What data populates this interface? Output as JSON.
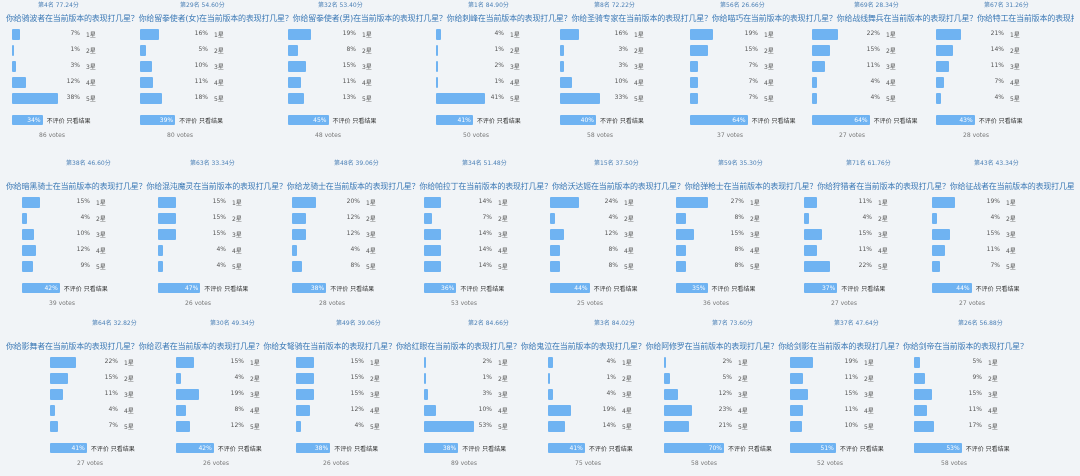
{
  "rows": [
    {
      "top_ranks": [
        "第4名 77.24分",
        "第29名 54.60分",
        "第32名 53.40分",
        "第1名 84.90分",
        "第8名 72.22分",
        "第56名 26.66分",
        "第69名 28.34分",
        "第67名 31.26分"
      ],
      "title": "你给骑波者在当前版本的表现打几星？你给留拳使者(女)在当前版本的表现打几星？你给留拳使者(男)在当前版本的表现打几星？你给刺峰在当前版本的表现打几星？你给圣骑专家在当前版本的表现打几星？你给喵巧在当前版本的表现打几星？你给战线舞兵在当前版本的表现打几星？你给特工在当前版本的表现打几星？",
      "polls": [
        {
          "opts": [
            [
              "7%",
              "1星"
            ],
            [
              "1%",
              "2星"
            ],
            [
              "3%",
              "3星"
            ],
            [
              "12%",
              "4星"
            ],
            [
              "38%",
              "5星"
            ]
          ],
          "result": "34%",
          "votes": "86 votes"
        },
        {
          "opts": [
            [
              "16%",
              "1星"
            ],
            [
              "5%",
              "2星"
            ],
            [
              "10%",
              "3星"
            ],
            [
              "11%",
              "4星"
            ],
            [
              "18%",
              "5星"
            ]
          ],
          "result": "39%",
          "votes": "80 votes"
        },
        {
          "opts": [
            [
              "19%",
              "1星"
            ],
            [
              "8%",
              "2星"
            ],
            [
              "15%",
              "3星"
            ],
            [
              "11%",
              "4星"
            ],
            [
              "13%",
              "5星"
            ]
          ],
          "result": "45%",
          "votes": "48 votes"
        },
        {
          "opts": [
            [
              "4%",
              "1星"
            ],
            [
              "1%",
              "2星"
            ],
            [
              "2%",
              "3星"
            ],
            [
              "1%",
              "4星"
            ],
            [
              "41%",
              "5星"
            ]
          ],
          "result": "41%",
          "votes": "50 votes"
        },
        {
          "opts": [
            [
              "16%",
              "1星"
            ],
            [
              "3%",
              "2星"
            ],
            [
              "3%",
              "3星"
            ],
            [
              "10%",
              "4星"
            ],
            [
              "33%",
              "5星"
            ]
          ],
          "result": "40%",
          "votes": "58 votes"
        },
        {
          "opts": [
            [
              "19%",
              "1星"
            ],
            [
              "15%",
              "2星"
            ],
            [
              "7%",
              "3星"
            ],
            [
              "7%",
              "4星"
            ],
            [
              "7%",
              "5星"
            ]
          ],
          "result": "64%",
          "votes": "37 votes"
        },
        {
          "opts": [
            [
              "22%",
              "1星"
            ],
            [
              "15%",
              "2星"
            ],
            [
              "11%",
              "3星"
            ],
            [
              "4%",
              "4星"
            ],
            [
              "4%",
              "5星"
            ]
          ],
          "result": "64%",
          "votes": "27 votes"
        },
        {
          "opts": [
            [
              "21%",
              "1星"
            ],
            [
              "14%",
              "2星"
            ],
            [
              "11%",
              "3星"
            ],
            [
              "7%",
              "4星"
            ],
            [
              "4%",
              "5星"
            ]
          ],
          "result": "43%",
          "votes": "28 votes"
        }
      ]
    },
    {
      "top_ranks": [
        "第38名 46.60分",
        "第63名 33.34分",
        "第48名 39.06分",
        "第34名 51.48分",
        "第15名 37.50分",
        "第59名 35.30分",
        "第71名 61.76分",
        "第43名 43.34分"
      ],
      "title": "你给暗黑骑士在当前版本的表现打几星？你给混沌魔灵在当前版本的表现打几星？你给龙骑士在当前版本的表现打几星？你给帕拉丁在当前版本的表现打几星？你给沃达姬在当前版本的表现打几星？你给弹枪士在当前版本的表现打几星？你给狩猎者在当前版本的表现打几星？你给征战者在当前版本的表现打几星？",
      "polls": [
        {
          "opts": [
            [
              "15%",
              "1星"
            ],
            [
              "4%",
              "2星"
            ],
            [
              "10%",
              "3星"
            ],
            [
              "12%",
              "4星"
            ],
            [
              "9%",
              "5星"
            ]
          ],
          "result": "42%",
          "votes": "39 votes"
        },
        {
          "opts": [
            [
              "15%",
              "1星"
            ],
            [
              "15%",
              "2星"
            ],
            [
              "15%",
              "3星"
            ],
            [
              "4%",
              "4星"
            ],
            [
              "4%",
              "5星"
            ]
          ],
          "result": "47%",
          "votes": "26 votes"
        },
        {
          "opts": [
            [
              "20%",
              "1星"
            ],
            [
              "12%",
              "2星"
            ],
            [
              "12%",
              "3星"
            ],
            [
              "4%",
              "4星"
            ],
            [
              "8%",
              "5星"
            ]
          ],
          "result": "38%",
          "votes": "28 votes"
        },
        {
          "opts": [
            [
              "14%",
              "1星"
            ],
            [
              "7%",
              "2星"
            ],
            [
              "14%",
              "3星"
            ],
            [
              "14%",
              "4星"
            ],
            [
              "14%",
              "5星"
            ]
          ],
          "result": "36%",
          "votes": "53 votes"
        },
        {
          "opts": [
            [
              "24%",
              "1星"
            ],
            [
              "4%",
              "2星"
            ],
            [
              "12%",
              "3星"
            ],
            [
              "8%",
              "4星"
            ],
            [
              "8%",
              "5星"
            ]
          ],
          "result": "44%",
          "votes": "25 votes"
        },
        {
          "opts": [
            [
              "27%",
              "1星"
            ],
            [
              "8%",
              "2星"
            ],
            [
              "15%",
              "3星"
            ],
            [
              "8%",
              "4星"
            ],
            [
              "8%",
              "5星"
            ]
          ],
          "result": "35%",
          "votes": "36 votes"
        },
        {
          "opts": [
            [
              "11%",
              "1星"
            ],
            [
              "4%",
              "2星"
            ],
            [
              "15%",
              "3星"
            ],
            [
              "11%",
              "4星"
            ],
            [
              "22%",
              "5星"
            ]
          ],
          "result": "37%",
          "votes": "27 votes"
        },
        {
          "opts": [
            [
              "19%",
              "1星"
            ],
            [
              "4%",
              "2星"
            ],
            [
              "15%",
              "3星"
            ],
            [
              "11%",
              "4星"
            ],
            [
              "7%",
              "5星"
            ]
          ],
          "result": "44%",
          "votes": "27 votes"
        }
      ]
    },
    {
      "top_ranks": [
        "第64名 32.82分",
        "第30名 49.34分",
        "第49名 39.06分",
        "第2名 84.66分",
        "第3名 84.02分",
        "第7名 73.60分",
        "第37名 47.64分",
        "第26名 56.88分"
      ],
      "title": "你给影舞者在当前版本的表现打几星？你给忍者在当前版本的表现打几星？你给女弩骑在当前版本的表现打几星？你给红眼在当前版本的表现打几星？你给鬼泣在当前版本的表现打几星？你给阿修罗在当前版本的表现打几星？你给剑影在当前版本的表现打几星？你给剑帝在当前版本的表现打几星？",
      "polls": [
        {
          "opts": [
            [
              "22%",
              "1星"
            ],
            [
              "15%",
              "2星"
            ],
            [
              "11%",
              "3星"
            ],
            [
              "4%",
              "4星"
            ],
            [
              "7%",
              "5星"
            ]
          ],
          "result": "41%",
          "votes": "27 votes"
        },
        {
          "opts": [
            [
              "15%",
              "1星"
            ],
            [
              "4%",
              "2星"
            ],
            [
              "19%",
              "3星"
            ],
            [
              "8%",
              "4星"
            ],
            [
              "12%",
              "5星"
            ]
          ],
          "result": "42%",
          "votes": "26 votes"
        },
        {
          "opts": [
            [
              "15%",
              "1星"
            ],
            [
              "15%",
              "2星"
            ],
            [
              "15%",
              "3星"
            ],
            [
              "12%",
              "4星"
            ],
            [
              "4%",
              "5星"
            ]
          ],
          "result": "38%",
          "votes": "26 votes"
        },
        {
          "opts": [
            [
              "2%",
              "1星"
            ],
            [
              "1%",
              "2星"
            ],
            [
              "3%",
              "3星"
            ],
            [
              "10%",
              "4星"
            ],
            [
              "53%",
              "5星"
            ]
          ],
          "result": "38%",
          "votes": "89 votes"
        },
        {
          "opts": [
            [
              "4%",
              "1星"
            ],
            [
              "1%",
              "2星"
            ],
            [
              "4%",
              "3星"
            ],
            [
              "19%",
              "4星"
            ],
            [
              "14%",
              "5星"
            ]
          ],
          "result": "41%",
          "votes": "75 votes"
        },
        {
          "opts": [
            [
              "2%",
              "1星"
            ],
            [
              "5%",
              "2星"
            ],
            [
              "12%",
              "3星"
            ],
            [
              "23%",
              "4星"
            ],
            [
              "21%",
              "5星"
            ]
          ],
          "result": "70%",
          "votes": "58 votes"
        },
        {
          "opts": [
            [
              "19%",
              "1星"
            ],
            [
              "11%",
              "2星"
            ],
            [
              "15%",
              "3星"
            ],
            [
              "11%",
              "4星"
            ],
            [
              "10%",
              "5星"
            ]
          ],
          "result": "51%",
          "votes": "52 votes"
        },
        {
          "opts": [
            [
              "5%",
              "1星"
            ],
            [
              "9%",
              "2星"
            ],
            [
              "15%",
              "3星"
            ],
            [
              "11%",
              "4星"
            ],
            [
              "17%",
              "5星"
            ]
          ],
          "result": "53%",
          "votes": "58 votes"
        }
      ]
    }
  ],
  "result_label": "不评价 只看结果",
  "accent_color": "#6fb3f2"
}
